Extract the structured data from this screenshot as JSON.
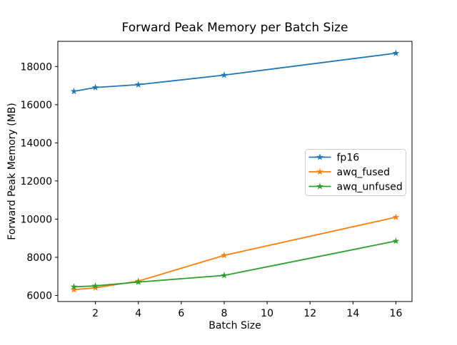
{
  "chart_data": {
    "type": "line",
    "title": "Forward Peak Memory per Batch Size",
    "xlabel": "Batch Size",
    "ylabel": "Forward Peak Memory (MB)",
    "x": [
      1,
      2,
      4,
      8,
      16
    ],
    "series": [
      {
        "name": "fp16",
        "color": "#1f77b4",
        "values": [
          16700,
          16900,
          17050,
          17550,
          18700
        ]
      },
      {
        "name": "awq_fused",
        "color": "#ff7f0e",
        "values": [
          6300,
          6400,
          6750,
          8100,
          10100
        ]
      },
      {
        "name": "awq_unfused",
        "color": "#2ca02c",
        "values": [
          6450,
          6500,
          6700,
          7050,
          8850
        ]
      }
    ],
    "marker": "star",
    "xticks": [
      2,
      4,
      6,
      8,
      10,
      12,
      14,
      16
    ],
    "yticks": [
      6000,
      8000,
      10000,
      12000,
      14000,
      16000,
      18000
    ],
    "xlim": [
      0.25,
      16.75
    ],
    "ylim": [
      5680,
      19320
    ],
    "grid": false,
    "legend_position": "center right",
    "colors": {
      "background": "#ffffff",
      "spine": "#000000",
      "legend_border": "#cccccc",
      "text": "#000000"
    }
  }
}
